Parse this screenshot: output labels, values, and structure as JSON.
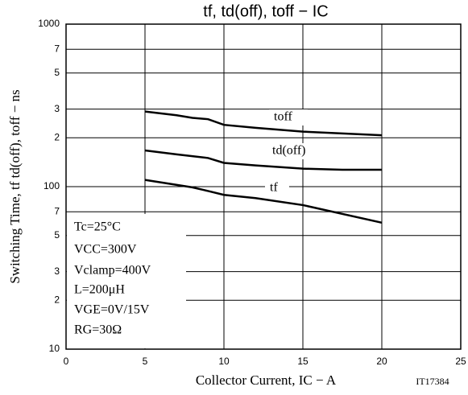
{
  "chart_data": {
    "type": "line",
    "title": "tf, td(off), toff − IC",
    "x_label": "Collector Current, IC − A",
    "y_label": "Switching Time, tf td(off), toff − ns",
    "figure_id": "IT17384",
    "annotations": [
      "Tc=25°C",
      "VCC=300V",
      "Vclamp=400V",
      "L=200μH",
      "VGE=0V/15V",
      "RG=30Ω"
    ],
    "xlim": [
      0,
      25
    ],
    "xticks": [
      0,
      5,
      10,
      15,
      20,
      25
    ],
    "ylim": [
      10,
      1000
    ],
    "log_y": true,
    "grid": true,
    "yticks": [
      10,
      {
        "value": 20,
        "label": "2"
      },
      {
        "value": 30,
        "label": "3"
      },
      {
        "value": 50,
        "label": "5"
      },
      {
        "value": 70,
        "label": "7"
      },
      100,
      {
        "value": 200,
        "label": "2"
      },
      {
        "value": 300,
        "label": "3"
      },
      {
        "value": 500,
        "label": "5"
      },
      {
        "value": 700,
        "label": "7"
      },
      1000
    ],
    "series": [
      {
        "name": "toff",
        "color": "#000000",
        "x": [
          5,
          7,
          8,
          9,
          10,
          12,
          15,
          20
        ],
        "values": [
          290,
          275,
          265,
          260,
          240,
          230,
          218,
          207
        ]
      },
      {
        "name": "td(off)",
        "color": "#000000",
        "x": [
          5,
          7,
          9,
          10,
          12,
          15,
          17.5,
          20
        ],
        "values": [
          167,
          158,
          150,
          140,
          135,
          129,
          127,
          127
        ]
      },
      {
        "name": "tf",
        "color": "#000000",
        "x": [
          5,
          8,
          9,
          10,
          12,
          15,
          20
        ],
        "values": [
          110,
          99,
          94,
          89,
          85,
          77,
          60
        ]
      }
    ]
  }
}
